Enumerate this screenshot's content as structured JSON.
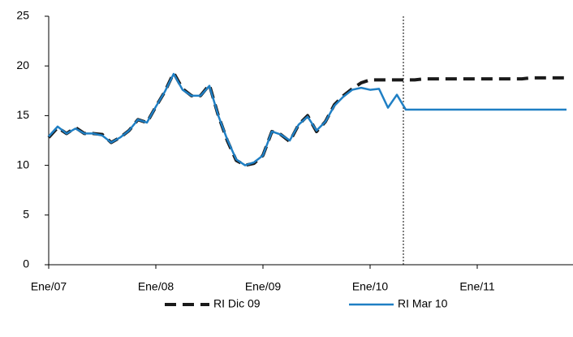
{
  "chart_data": {
    "type": "line",
    "categories": [
      "Ene/07",
      null,
      null,
      null,
      null,
      null,
      null,
      null,
      null,
      null,
      null,
      null,
      "Ene/08",
      null,
      null,
      null,
      null,
      null,
      null,
      null,
      null,
      null,
      null,
      null,
      "Ene/09",
      null,
      null,
      null,
      null,
      null,
      null,
      null,
      null,
      null,
      null,
      null,
      "Ene/10",
      null,
      null,
      null,
      null,
      null,
      null,
      null,
      null,
      null,
      null,
      null,
      "Ene/11",
      null,
      null,
      null,
      null,
      null,
      null,
      null,
      null,
      null,
      null
    ],
    "series": [
      {
        "name": "RI Dic 09",
        "color": "#1a1a1a",
        "style": "dashed",
        "values": [
          12.8,
          13.8,
          13.2,
          13.8,
          13.2,
          13.2,
          13.1,
          12.3,
          12.8,
          13.5,
          14.6,
          14.3,
          15.9,
          17.4,
          19.3,
          17.7,
          17.0,
          17.0,
          18.1,
          15.0,
          12.5,
          10.5,
          10.0,
          10.2,
          11.0,
          13.4,
          13.1,
          12.4,
          14.1,
          15.0,
          13.4,
          14.4,
          16.1,
          17.0,
          17.7,
          18.3,
          18.6,
          18.6,
          18.6,
          18.6,
          18.6,
          18.6,
          18.7,
          18.7,
          18.7,
          18.7,
          18.7,
          18.7,
          18.7,
          18.7,
          18.7,
          18.7,
          18.7,
          18.7,
          18.8,
          18.8,
          18.8,
          18.8,
          18.8
        ]
      },
      {
        "name": "RI Mar 10",
        "color": "#1f7fc4",
        "style": "solid",
        "values": [
          12.9,
          13.9,
          13.2,
          13.7,
          13.2,
          13.2,
          13.0,
          12.3,
          12.8,
          13.5,
          14.6,
          14.3,
          15.9,
          17.4,
          19.2,
          17.6,
          17.0,
          17.0,
          18.0,
          15.0,
          12.6,
          10.6,
          10.0,
          10.3,
          11.0,
          13.4,
          13.1,
          12.5,
          14.1,
          14.9,
          13.5,
          14.4,
          16.0,
          16.9,
          17.6,
          17.8,
          17.6,
          17.7,
          15.8,
          17.1,
          15.6,
          15.6,
          15.6,
          15.6,
          15.6,
          15.6,
          15.6,
          15.6,
          15.6,
          15.6,
          15.6,
          15.6,
          15.6,
          15.6,
          15.6,
          15.6,
          15.6,
          15.6,
          15.6
        ]
      }
    ],
    "ylim": [
      0,
      25
    ],
    "yticks": [
      0,
      5,
      10,
      15,
      20,
      25
    ],
    "grid": false
  }
}
